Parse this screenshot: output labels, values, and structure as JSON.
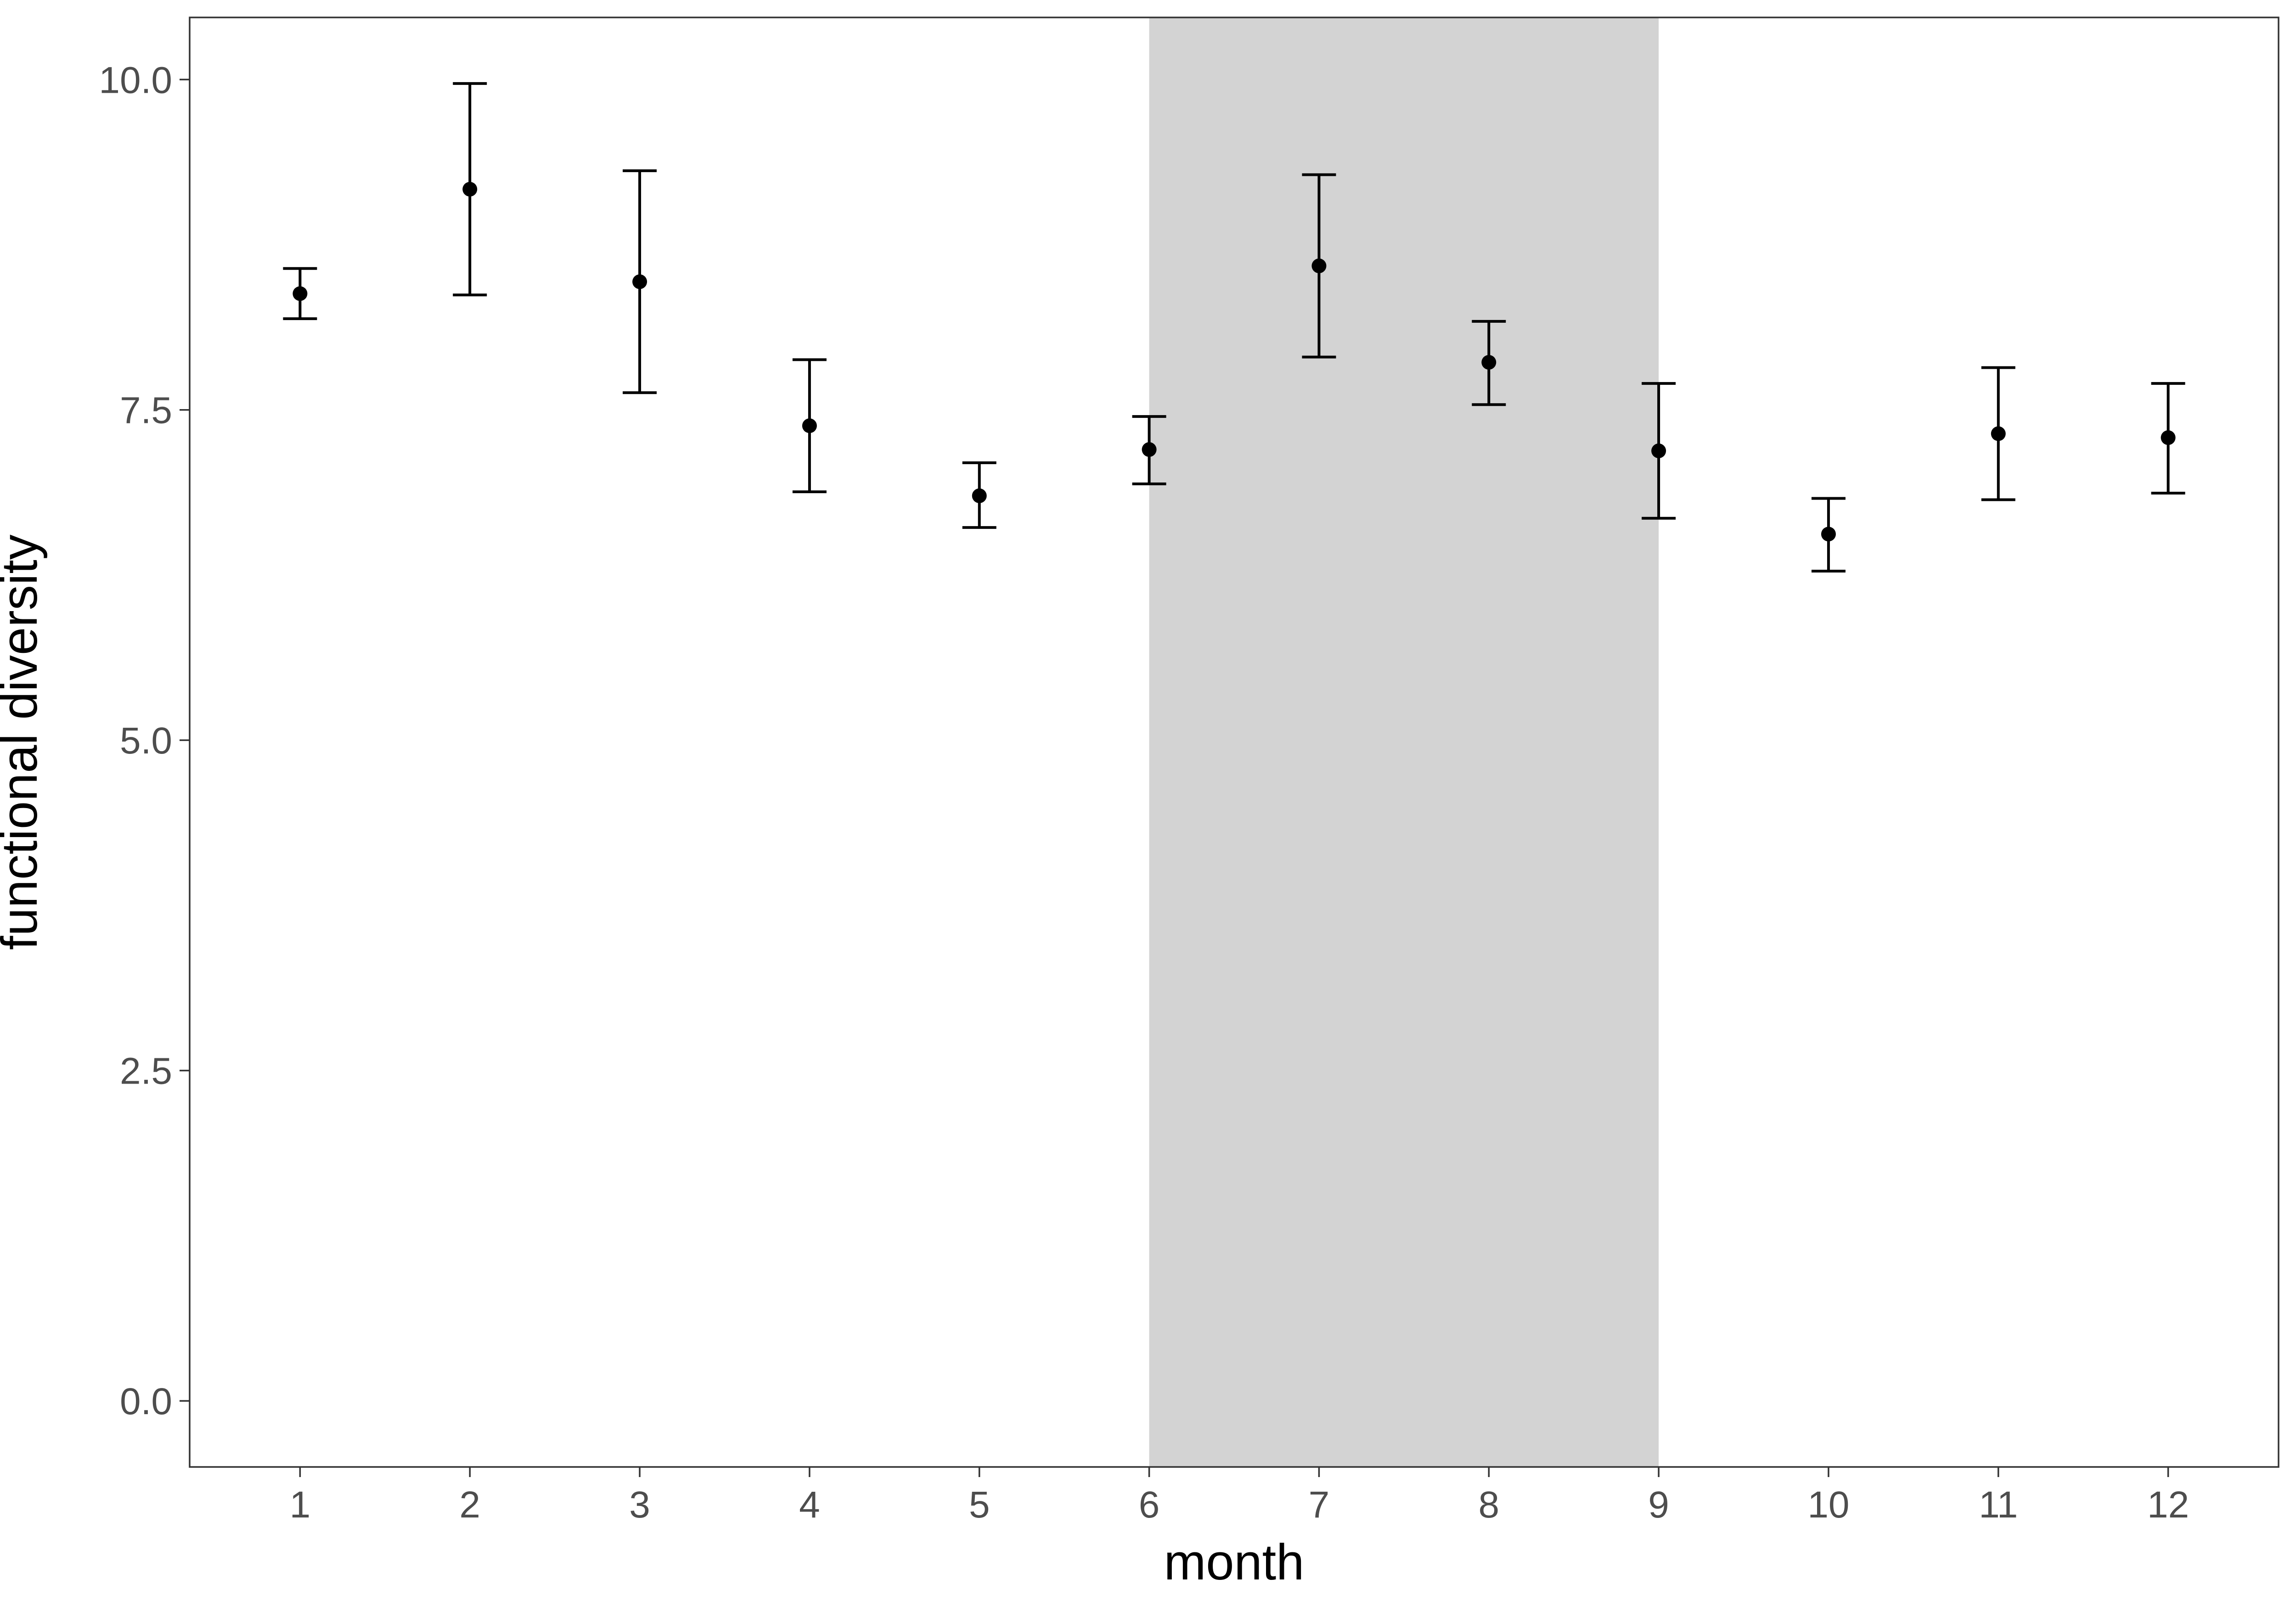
{
  "chart_data": {
    "type": "scatter",
    "xlabel": "month",
    "ylabel": "functional diversity",
    "xlim": [
      0.35,
      12.65
    ],
    "ylim": [
      -0.5,
      10.47
    ],
    "x_ticks": [
      {
        "value": 1,
        "label": "1"
      },
      {
        "value": 2,
        "label": "2"
      },
      {
        "value": 3,
        "label": "3"
      },
      {
        "value": 4,
        "label": "4"
      },
      {
        "value": 5,
        "label": "5"
      },
      {
        "value": 6,
        "label": "6"
      },
      {
        "value": 7,
        "label": "7"
      },
      {
        "value": 8,
        "label": "8"
      },
      {
        "value": 9,
        "label": "9"
      },
      {
        "value": 10,
        "label": "10"
      },
      {
        "value": 11,
        "label": "11"
      },
      {
        "value": 12,
        "label": "12"
      }
    ],
    "y_ticks": [
      {
        "value": 0,
        "label": "0.0"
      },
      {
        "value": 2.5,
        "label": "2.5"
      },
      {
        "value": 5,
        "label": "5.0"
      },
      {
        "value": 7.5,
        "label": "7.5"
      },
      {
        "value": 10,
        "label": "10.0"
      }
    ],
    "shaded_region": {
      "x_start": 6,
      "x_end": 9,
      "color": "#d3d3d3"
    },
    "grid": false,
    "point_color": "#000000",
    "points": [
      {
        "x": 1,
        "y": 8.38,
        "lower": 8.19,
        "upper": 8.57
      },
      {
        "x": 2,
        "y": 9.17,
        "lower": 8.37,
        "upper": 9.97
      },
      {
        "x": 3,
        "y": 8.47,
        "lower": 7.63,
        "upper": 9.31
      },
      {
        "x": 4,
        "y": 7.38,
        "lower": 6.88,
        "upper": 7.88
      },
      {
        "x": 5,
        "y": 6.85,
        "lower": 6.61,
        "upper": 7.1
      },
      {
        "x": 6,
        "y": 7.2,
        "lower": 6.94,
        "upper": 7.45
      },
      {
        "x": 7,
        "y": 8.59,
        "lower": 7.9,
        "upper": 9.28
      },
      {
        "x": 8,
        "y": 7.86,
        "lower": 7.54,
        "upper": 8.17
      },
      {
        "x": 9,
        "y": 7.19,
        "lower": 6.68,
        "upper": 7.7
      },
      {
        "x": 10,
        "y": 6.56,
        "lower": 6.28,
        "upper": 6.83
      },
      {
        "x": 11,
        "y": 7.32,
        "lower": 6.82,
        "upper": 7.82
      },
      {
        "x": 12,
        "y": 7.29,
        "lower": 6.87,
        "upper": 7.7
      }
    ]
  }
}
